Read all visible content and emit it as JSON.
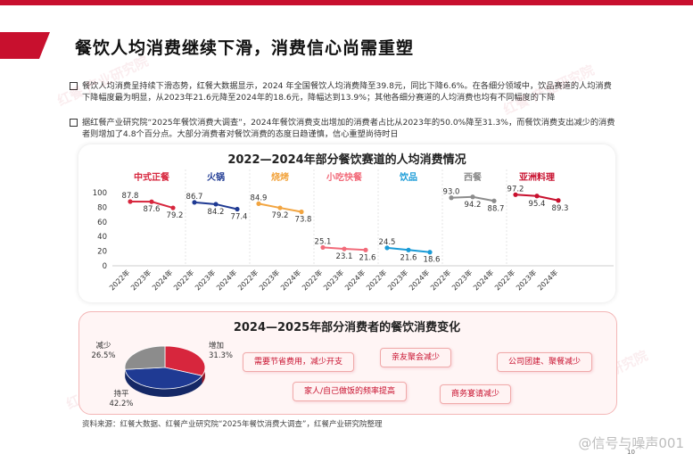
{
  "page": {
    "title": "餐饮人均消费继续下滑，消费信心尚需重塑",
    "bullets": [
      "餐饮人均消费呈持续下滑态势，红餐大数据显示，2024 年全国餐饮人均消费降至39.8元，同比下降6.6%。在各细分领域中，饮品赛道的人均消费下降幅度最为明显，从2023年21.6元降至2024年的18.6元，降幅达到13.9%；其他各细分赛道的人均消费也均有不同幅度的下降",
      "据红餐产业研究院“2025年餐饮消费大调查”，2024年餐饮消费支出增加的消费者占比从2023年的50.0%降至31.3%，而餐饮消费支出减少的消费者则增加了4.8个百分点。大部分消费者对餐饮消费的态度日趋谨慎，信心重塑尚待时日"
    ],
    "source": "资料来源：红餐大数据、红餐产业研究院“2025年餐饮消费大调查”，红餐产业研究院整理",
    "watermark": "红餐 产业研究院",
    "weibo": "@信号与噪声001",
    "page_number": "10"
  },
  "colors": {
    "accent": "#c8102e",
    "blue": "#1f3a93",
    "gray": "#8c8c8c"
  },
  "chart_data": [
    {
      "type": "line",
      "title": "2022—2024年部分餐饮赛道的人均消费情况",
      "ylim": [
        0,
        100
      ],
      "yticks": [
        "100",
        "80",
        "60",
        "40",
        "20",
        "0"
      ],
      "x": [
        "2022年",
        "2023年",
        "2024年"
      ],
      "grid": false,
      "series": [
        {
          "name": "中式正餐",
          "color": "#d7263d",
          "values": [
            87.8,
            87.6,
            79.2
          ],
          "labels": [
            "87.8",
            "87.6",
            "79.2"
          ]
        },
        {
          "name": "火锅",
          "color": "#1f3a93",
          "values": [
            86.7,
            84.2,
            77.4
          ],
          "labels": [
            "86.7",
            "84.2",
            "77.4"
          ]
        },
        {
          "name": "烧烤",
          "color": "#f2a541",
          "values": [
            84.9,
            79.2,
            73.8
          ],
          "labels": [
            "84.9",
            "79.2",
            "73.8"
          ]
        },
        {
          "name": "小吃快餐",
          "color": "#f26b7a",
          "values": [
            25.1,
            23.1,
            21.6
          ],
          "labels": [
            "25.1",
            "23.1",
            "21.6"
          ]
        },
        {
          "name": "饮品",
          "color": "#1a9bd7",
          "values": [
            24.5,
            21.6,
            18.6
          ],
          "labels": [
            "24.5",
            "21.6",
            "18.6"
          ]
        },
        {
          "name": "西餐",
          "color": "#8c8c8c",
          "values": [
            93.0,
            94.2,
            88.7
          ],
          "labels": [
            "93.0",
            "94.2",
            "88.7"
          ]
        },
        {
          "name": "亚洲料理",
          "color": "#c8102e",
          "values": [
            97.2,
            95.4,
            89.3
          ],
          "labels": [
            "97.2",
            "95.4",
            "89.3"
          ]
        }
      ]
    },
    {
      "type": "pie",
      "title": "2024—2025年部分消费者的餐饮消费变化",
      "slices": [
        {
          "name": "增加",
          "value": 31.3,
          "label": "31.3%",
          "color": "#d7263d"
        },
        {
          "name": "持平",
          "value": 42.2,
          "label": "42.2%",
          "color": "#1f3a93"
        },
        {
          "name": "减少",
          "value": 26.5,
          "label": "26.5%",
          "color": "#8c8c8c"
        }
      ],
      "tags": [
        "需要节省费用，减少开支",
        "亲友聚会减少",
        "公司团建、聚餐减少",
        "家人/自己做饭的频率提高",
        "商务宴请减少"
      ]
    }
  ]
}
